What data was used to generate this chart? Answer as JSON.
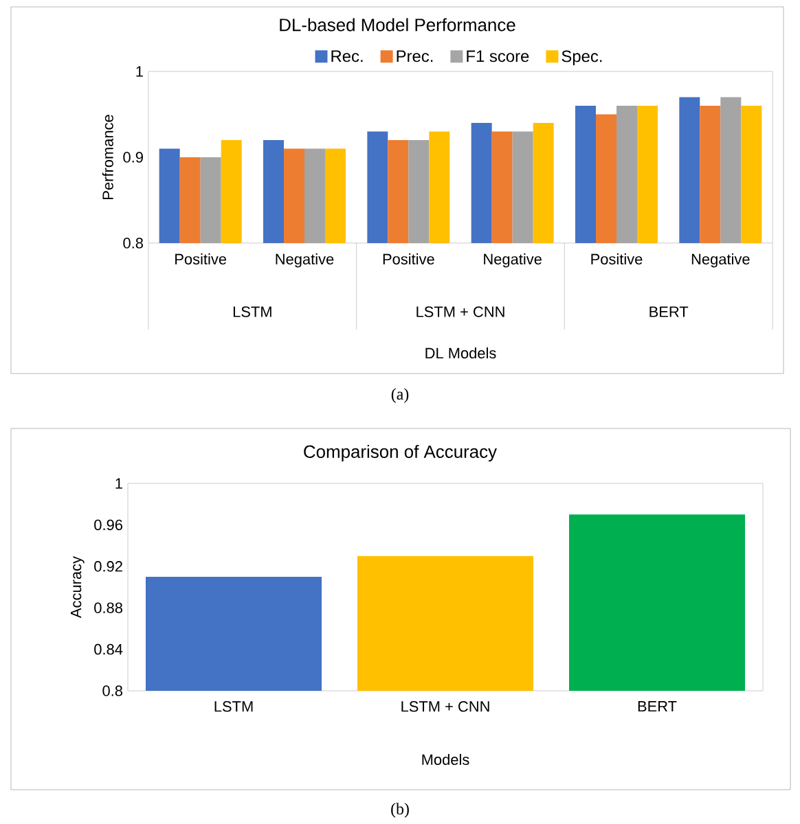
{
  "chart_data": [
    {
      "type": "bar",
      "title": "DL-based Model Performance",
      "xlabel": "DL Models",
      "ylabel": "Perfromance",
      "categories": [
        "Positive",
        "Negative",
        "Positive",
        "Negative",
        "Positive",
        "Negative"
      ],
      "series": [
        {
          "name": "Rec.",
          "color": "#4472c4",
          "values": [
            0.91,
            0.92,
            0.93,
            0.94,
            0.96,
            0.97
          ]
        },
        {
          "name": "Prec.",
          "color": "#ed7d31",
          "values": [
            0.9,
            0.91,
            0.92,
            0.93,
            0.95,
            0.96
          ]
        },
        {
          "name": "F1 score",
          "color": "#a5a5a5",
          "values": [
            0.9,
            0.91,
            0.92,
            0.93,
            0.96,
            0.97
          ]
        },
        {
          "name": "Spec.",
          "color": "#ffc000",
          "values": [
            0.92,
            0.91,
            0.93,
            0.94,
            0.96,
            0.96
          ]
        }
      ],
      "ylim": [
        0.8,
        1
      ],
      "yticks": [
        0.8,
        0.9,
        1
      ],
      "grid": false,
      "legend": "top",
      "annotations": [
        "LSTM",
        "LSTM + CNN",
        "BERT",
        "(a)"
      ]
    },
    {
      "type": "bar",
      "title": "Comparison of Accuracy",
      "xlabel": "Models",
      "ylabel": "Accuracy",
      "categories": [
        "LSTM",
        "LSTM + CNN",
        "BERT"
      ],
      "values": [
        0.91,
        0.93,
        0.97
      ],
      "colors": [
        "#4472c4",
        "#ffc000",
        "#00b050"
      ],
      "ylim": [
        0.8,
        1
      ],
      "yticks": [
        0.8,
        0.84,
        0.88,
        0.92,
        0.96,
        1
      ],
      "grid": false,
      "legend": false,
      "annotations": [
        "(b)"
      ]
    }
  ]
}
